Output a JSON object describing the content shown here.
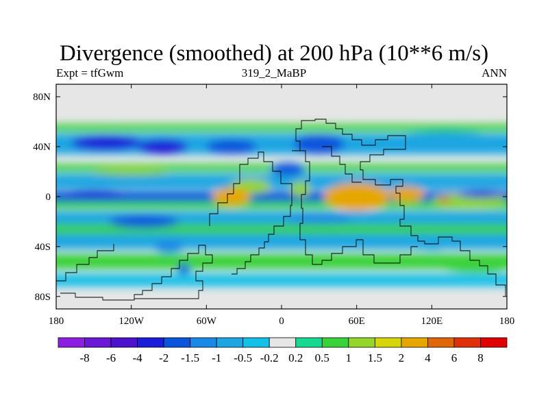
{
  "chart_data": {
    "type": "heatmap",
    "title": "Divergence (smoothed) at 200 hPa (10**6 m/s)",
    "subtitle_left": "Expt = tfGwm",
    "subtitle_center": "319_2_MaBP",
    "subtitle_right": "ANN",
    "x_range": [
      -180,
      180
    ],
    "y_range": [
      -90,
      90
    ],
    "x_ticks": [
      {
        "value": -180,
        "label": "180"
      },
      {
        "value": -120,
        "label": "120W"
      },
      {
        "value": -60,
        "label": "60W"
      },
      {
        "value": 0,
        "label": "0"
      },
      {
        "value": 60,
        "label": "60E"
      },
      {
        "value": 120,
        "label": "120E"
      },
      {
        "value": 180,
        "label": "180"
      }
    ],
    "y_ticks": [
      {
        "value": 80,
        "label": "80N"
      },
      {
        "value": 40,
        "label": "40N"
      },
      {
        "value": 0,
        "label": "0"
      },
      {
        "value": -40,
        "label": "40S"
      },
      {
        "value": -80,
        "label": "80S"
      }
    ],
    "colorbar": {
      "levels": [
        "-8",
        "-6",
        "-4",
        "-2",
        "-1.5",
        "-1",
        "-0.5",
        "-0.2",
        "0.2",
        "0.5",
        "1",
        "1.5",
        "2",
        "4",
        "6",
        "8"
      ],
      "colors": [
        "#8c1fe0",
        "#6a18d8",
        "#4b14cc",
        "#1a1ed8",
        "#0a55dc",
        "#1a88e6",
        "#1ea6e2",
        "#12c0e8",
        "#e6e6e6",
        "#16d890",
        "#3ad23a",
        "#96d62a",
        "#d6d40a",
        "#e6a600",
        "#e0660a",
        "#e0300a",
        "#e00000"
      ]
    },
    "bands": [
      {
        "lat_min": 52,
        "lat_max": 58,
        "value": 0.6
      },
      {
        "lat_min": 34,
        "lat_max": 50,
        "value": -0.8
      },
      {
        "lat_min": 20,
        "lat_max": 26,
        "value": 0.7
      },
      {
        "lat_min": 6,
        "lat_max": 18,
        "value": -0.6
      },
      {
        "lat_min": -4,
        "lat_max": 4,
        "value": -1.8
      },
      {
        "lat_min": -10,
        "lat_max": -4,
        "value": 0.6
      },
      {
        "lat_min": -22,
        "lat_max": -12,
        "value": -0.7
      },
      {
        "lat_min": -30,
        "lat_max": -22,
        "value": 0.6
      },
      {
        "lat_min": -42,
        "lat_max": -30,
        "value": -0.6
      },
      {
        "lat_min": -58,
        "lat_max": -46,
        "value": 0.6
      },
      {
        "lat_min": -72,
        "lat_max": -62,
        "value": -0.4
      }
    ],
    "blobs": [
      {
        "lon": -140,
        "lat": 43,
        "rlon": 28,
        "rlat": 6,
        "value": -2.2
      },
      {
        "lon": -95,
        "lat": 40,
        "rlon": 20,
        "rlat": 6,
        "value": -2.5
      },
      {
        "lon": -40,
        "lat": 40,
        "rlon": 20,
        "rlat": 6,
        "value": -1.6
      },
      {
        "lon": 30,
        "lat": 42,
        "rlon": 20,
        "rlat": 8,
        "value": -2.0
      },
      {
        "lon": 130,
        "lat": 47,
        "rlon": 40,
        "rlat": 5,
        "value": -1.0
      },
      {
        "lon": -120,
        "lat": 20,
        "rlon": 30,
        "rlat": 3,
        "value": 1.0
      },
      {
        "lon": -25,
        "lat": 8,
        "rlon": 16,
        "rlat": 6,
        "value": 1.3
      },
      {
        "lon": -40,
        "lat": 0,
        "rlon": 15,
        "rlat": 7,
        "value": 2.3
      },
      {
        "lon": 15,
        "lat": 6,
        "rlon": 8,
        "rlat": 6,
        "value": 1.2
      },
      {
        "lon": 60,
        "lat": 0,
        "rlon": 26,
        "rlat": 11,
        "value": 2.8
      },
      {
        "lon": 100,
        "lat": 2,
        "rlon": 14,
        "rlat": 6,
        "value": 2.2
      },
      {
        "lon": 150,
        "lat": -3,
        "rlon": 30,
        "rlat": 5,
        "value": 1.2
      },
      {
        "lon": 130,
        "lat": -3,
        "rlon": 5,
        "rlat": 2,
        "value": 4.5
      },
      {
        "lon": 5,
        "lat": 22,
        "rlon": 14,
        "rlat": 5,
        "value": -2.0
      },
      {
        "lon": -150,
        "lat": 2,
        "rlon": 25,
        "rlat": 3,
        "value": -2.5
      },
      {
        "lon": 160,
        "lat": 2,
        "rlon": 20,
        "rlat": 3,
        "value": -2.6
      },
      {
        "lon": -110,
        "lat": -20,
        "rlon": 28,
        "rlat": 5,
        "value": -1.6
      },
      {
        "lon": 30,
        "lat": -18,
        "rlon": 26,
        "rlat": 4,
        "value": -1.5
      },
      {
        "lon": -90,
        "lat": -40,
        "rlon": 12,
        "rlat": 5,
        "value": -1.4
      },
      {
        "lon": 120,
        "lat": -38,
        "rlon": 18,
        "rlat": 5,
        "value": -0.8
      },
      {
        "lon": -78,
        "lat": -58,
        "rlon": 5,
        "rlat": 4,
        "value": -2.0
      },
      {
        "lon": 155,
        "lat": -57,
        "rlon": 25,
        "rlat": 4,
        "value": 0.8
      }
    ]
  }
}
